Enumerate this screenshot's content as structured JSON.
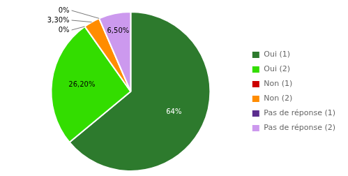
{
  "chart_data": {
    "type": "pie",
    "categories": [
      "Oui (1)",
      "Oui (2)",
      "Non (1)",
      "Non (2)",
      "Pas de réponse (1)",
      "Pas de réponse (2)"
    ],
    "values": [
      64.0,
      26.2,
      0.001,
      3.3,
      0.001,
      6.5
    ],
    "value_labels": [
      "64%",
      "26,20%",
      "0%",
      "3,30%",
      "0%",
      "6,50%"
    ],
    "colors": [
      "#2d7a2d",
      "#33dd00",
      "#cc0000",
      "#ff8c00",
      "#5b2d8e",
      "#cc99ee"
    ],
    "data_labels": true,
    "legend": "right"
  }
}
